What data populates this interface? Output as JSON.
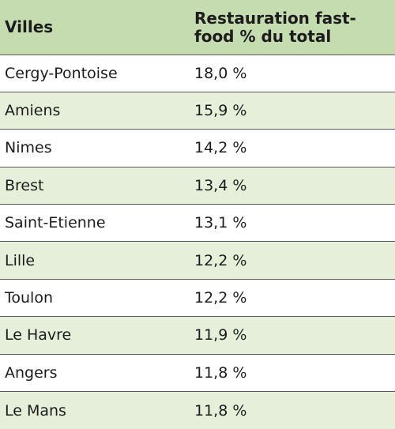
{
  "header": {
    "col1": "Villes",
    "col2": "Restauration fast-food % du total"
  },
  "rows": [
    {
      "city": "Cergy-Pontoise",
      "value": "18,0 %"
    },
    {
      "city": "Amiens",
      "value": "15,9 %"
    },
    {
      "city": "Nimes",
      "value": "14,2 %"
    },
    {
      "city": "Brest",
      "value": "13,4 %"
    },
    {
      "city": "Saint-Etienne",
      "value": "13,1 %"
    },
    {
      "city": "Lille",
      "value": "12,2 %"
    },
    {
      "city": "Toulon",
      "value": "12,2 %"
    },
    {
      "city": "Le Havre",
      "value": "11,9 %"
    },
    {
      "city": "Angers",
      "value": "11,8 %"
    },
    {
      "city": "Le Mans",
      "value": "11,8 %"
    }
  ],
  "colors": {
    "header_bg": "#c4dcb0",
    "stripe_bg": "#e5efd9",
    "plain_bg": "#ffffff"
  }
}
